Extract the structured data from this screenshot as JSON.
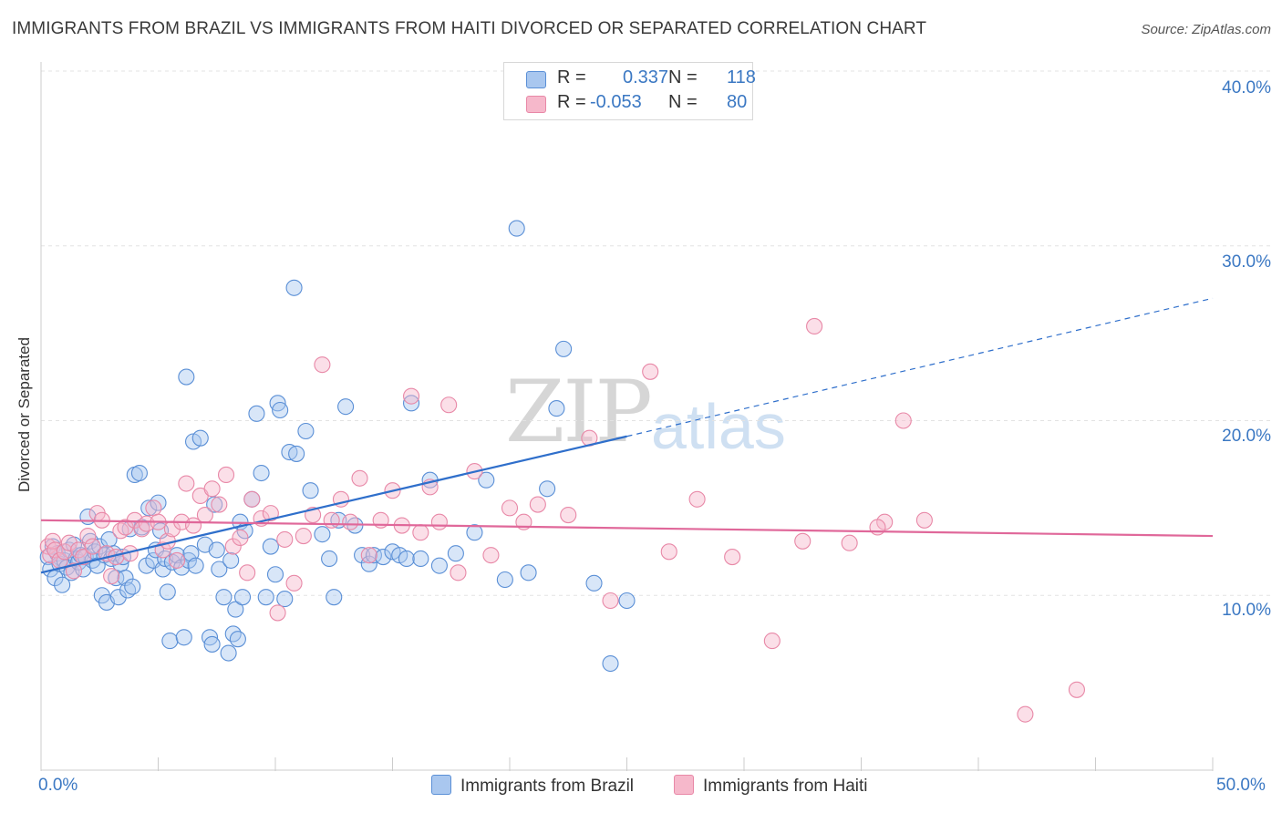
{
  "title": "IMMIGRANTS FROM BRAZIL VS IMMIGRANTS FROM HAITI DIVORCED OR SEPARATED CORRELATION CHART",
  "source": "Source: ZipAtlas.com",
  "watermark": {
    "zip": "ZIP",
    "atlas": "atlas"
  },
  "legend": {
    "rows": [
      {
        "r_label": "R =",
        "r_value": "0.337",
        "n_label": "N =",
        "n_value": "118",
        "color": "#a9c7ef"
      },
      {
        "r_label": "R =",
        "r_value": "-0.053",
        "n_label": "N =",
        "n_value": "80",
        "color": "#f6b8cb"
      }
    ]
  },
  "bottom_legend": [
    {
      "label": "Immigrants from Brazil",
      "color": "#a9c7ef"
    },
    {
      "label": "Immigrants from Haiti",
      "color": "#f6b8cb"
    }
  ],
  "chart_data": {
    "type": "scatter",
    "title": "IMMIGRANTS FROM BRAZIL VS IMMIGRANTS FROM HAITI DIVORCED OR SEPARATED CORRELATION CHART",
    "xlabel": "",
    "ylabel": "Divorced or Separated",
    "xlim": [
      0,
      50
    ],
    "ylim": [
      0,
      40
    ],
    "x_tick_labels": [
      "0.0%",
      "50.0%"
    ],
    "y_ticks": [
      10,
      20,
      30,
      40
    ],
    "y_tick_labels": [
      "10.0%",
      "20.0%",
      "30.0%",
      "40.0%"
    ],
    "grid": true,
    "series": [
      {
        "name": "Immigrants from Brazil",
        "color": "#5a8fd6",
        "fill": "#a9c7ef",
        "trend": {
          "x0": 0,
          "y0": 11.3,
          "x1": 25,
          "y1": 19.1,
          "x_dash_end": 50,
          "y_dash_end": 27.0,
          "color": "#2f6fcb"
        },
        "points": [
          [
            0.3,
            12.2
          ],
          [
            0.4,
            11.5
          ],
          [
            0.5,
            12.8
          ],
          [
            0.6,
            11.0
          ],
          [
            0.7,
            12.4
          ],
          [
            0.8,
            11.8
          ],
          [
            0.9,
            10.6
          ],
          [
            1.0,
            12.0
          ],
          [
            1.1,
            11.6
          ],
          [
            1.2,
            12.6
          ],
          [
            1.3,
            11.3
          ],
          [
            1.4,
            12.9
          ],
          [
            1.5,
            12.1
          ],
          [
            1.6,
            11.9
          ],
          [
            1.7,
            12.3
          ],
          [
            1.8,
            11.5
          ],
          [
            1.9,
            12.2
          ],
          [
            2.0,
            14.5
          ],
          [
            2.1,
            13.1
          ],
          [
            2.2,
            12.0
          ],
          [
            2.3,
            12.5
          ],
          [
            2.4,
            11.7
          ],
          [
            2.5,
            12.8
          ],
          [
            2.6,
            10.0
          ],
          [
            2.7,
            12.3
          ],
          [
            2.8,
            9.6
          ],
          [
            2.9,
            13.2
          ],
          [
            3.0,
            12.1
          ],
          [
            3.1,
            12.4
          ],
          [
            3.2,
            11.0
          ],
          [
            3.3,
            9.9
          ],
          [
            3.4,
            11.8
          ],
          [
            3.5,
            12.2
          ],
          [
            3.6,
            11.0
          ],
          [
            3.7,
            10.3
          ],
          [
            3.8,
            13.8
          ],
          [
            3.9,
            10.5
          ],
          [
            4.0,
            16.9
          ],
          [
            4.2,
            17.0
          ],
          [
            4.3,
            13.9
          ],
          [
            4.5,
            11.7
          ],
          [
            4.6,
            15.0
          ],
          [
            4.8,
            12.0
          ],
          [
            4.9,
            12.6
          ],
          [
            5.0,
            15.3
          ],
          [
            5.1,
            13.7
          ],
          [
            5.2,
            11.5
          ],
          [
            5.3,
            12.1
          ],
          [
            5.4,
            10.2
          ],
          [
            5.5,
            7.4
          ],
          [
            5.6,
            11.9
          ],
          [
            5.8,
            12.3
          ],
          [
            6.0,
            11.6
          ],
          [
            6.1,
            7.6
          ],
          [
            6.2,
            22.5
          ],
          [
            6.3,
            12.0
          ],
          [
            6.4,
            12.4
          ],
          [
            6.5,
            18.8
          ],
          [
            6.6,
            11.7
          ],
          [
            6.8,
            19.0
          ],
          [
            7.0,
            12.9
          ],
          [
            7.2,
            7.6
          ],
          [
            7.3,
            7.2
          ],
          [
            7.4,
            15.2
          ],
          [
            7.5,
            12.6
          ],
          [
            7.6,
            11.5
          ],
          [
            7.8,
            9.9
          ],
          [
            8.0,
            6.7
          ],
          [
            8.1,
            12.0
          ],
          [
            8.2,
            7.8
          ],
          [
            8.3,
            9.2
          ],
          [
            8.4,
            7.5
          ],
          [
            8.5,
            14.2
          ],
          [
            8.6,
            9.9
          ],
          [
            8.7,
            13.7
          ],
          [
            9.0,
            15.5
          ],
          [
            9.2,
            20.4
          ],
          [
            9.4,
            17.0
          ],
          [
            9.6,
            9.9
          ],
          [
            9.8,
            12.8
          ],
          [
            10.0,
            11.2
          ],
          [
            10.1,
            21.0
          ],
          [
            10.2,
            20.6
          ],
          [
            10.4,
            9.8
          ],
          [
            10.6,
            18.2
          ],
          [
            10.8,
            27.6
          ],
          [
            10.9,
            18.1
          ],
          [
            11.3,
            19.4
          ],
          [
            11.5,
            16.0
          ],
          [
            12.0,
            13.5
          ],
          [
            12.3,
            12.1
          ],
          [
            12.5,
            9.9
          ],
          [
            12.7,
            14.3
          ],
          [
            13.0,
            20.8
          ],
          [
            13.4,
            14.0
          ],
          [
            13.7,
            12.3
          ],
          [
            14.0,
            11.8
          ],
          [
            14.2,
            12.3
          ],
          [
            14.6,
            12.2
          ],
          [
            15.0,
            12.5
          ],
          [
            15.3,
            12.3
          ],
          [
            15.6,
            12.1
          ],
          [
            15.8,
            21.0
          ],
          [
            16.2,
            12.1
          ],
          [
            16.6,
            16.6
          ],
          [
            17.0,
            11.7
          ],
          [
            17.7,
            12.4
          ],
          [
            18.5,
            13.6
          ],
          [
            19.0,
            16.6
          ],
          [
            19.8,
            10.9
          ],
          [
            20.3,
            31.0
          ],
          [
            20.8,
            11.3
          ],
          [
            21.6,
            16.1
          ],
          [
            22.0,
            20.7
          ],
          [
            22.3,
            24.1
          ],
          [
            23.6,
            10.7
          ],
          [
            24.3,
            6.1
          ],
          [
            25.0,
            9.7
          ]
        ]
      },
      {
        "name": "Immigrants from Haiti",
        "color": "#e888a7",
        "fill": "#f6b8cb",
        "trend": {
          "x0": 0,
          "y0": 14.3,
          "x1": 50,
          "y1": 13.4,
          "color": "#e0689a"
        },
        "points": [
          [
            0.3,
            12.8
          ],
          [
            0.4,
            12.3
          ],
          [
            0.5,
            13.1
          ],
          [
            0.6,
            12.6
          ],
          [
            0.8,
            12.0
          ],
          [
            1.0,
            12.5
          ],
          [
            1.2,
            13.0
          ],
          [
            1.4,
            11.4
          ],
          [
            1.6,
            12.6
          ],
          [
            1.8,
            12.2
          ],
          [
            2.0,
            13.4
          ],
          [
            2.2,
            12.8
          ],
          [
            2.4,
            14.7
          ],
          [
            2.6,
            14.3
          ],
          [
            2.8,
            12.4
          ],
          [
            3.0,
            11.1
          ],
          [
            3.2,
            12.2
          ],
          [
            3.4,
            13.7
          ],
          [
            3.6,
            13.9
          ],
          [
            3.8,
            12.4
          ],
          [
            4.0,
            14.3
          ],
          [
            4.3,
            13.8
          ],
          [
            4.5,
            14.1
          ],
          [
            4.8,
            15.0
          ],
          [
            5.0,
            14.2
          ],
          [
            5.2,
            12.6
          ],
          [
            5.4,
            13.1
          ],
          [
            5.6,
            13.8
          ],
          [
            5.8,
            12.0
          ],
          [
            6.0,
            14.2
          ],
          [
            6.2,
            16.4
          ],
          [
            6.5,
            14.0
          ],
          [
            6.8,
            15.7
          ],
          [
            7.0,
            14.6
          ],
          [
            7.3,
            16.1
          ],
          [
            7.6,
            15.2
          ],
          [
            7.9,
            16.9
          ],
          [
            8.2,
            12.8
          ],
          [
            8.5,
            13.3
          ],
          [
            8.8,
            11.3
          ],
          [
            9.0,
            15.5
          ],
          [
            9.4,
            14.4
          ],
          [
            9.8,
            14.7
          ],
          [
            10.1,
            9.0
          ],
          [
            10.4,
            13.2
          ],
          [
            10.8,
            10.7
          ],
          [
            11.2,
            13.4
          ],
          [
            11.6,
            14.6
          ],
          [
            12.0,
            23.2
          ],
          [
            12.4,
            14.3
          ],
          [
            12.8,
            15.5
          ],
          [
            13.2,
            14.2
          ],
          [
            13.6,
            16.7
          ],
          [
            14.0,
            12.3
          ],
          [
            14.5,
            14.3
          ],
          [
            15.0,
            16.0
          ],
          [
            15.4,
            14.0
          ],
          [
            15.8,
            21.4
          ],
          [
            16.2,
            13.6
          ],
          [
            16.6,
            16.2
          ],
          [
            17.0,
            14.2
          ],
          [
            17.4,
            20.9
          ],
          [
            17.8,
            11.3
          ],
          [
            18.5,
            17.1
          ],
          [
            19.2,
            12.3
          ],
          [
            20.0,
            15.0
          ],
          [
            20.6,
            14.2
          ],
          [
            21.2,
            15.2
          ],
          [
            22.5,
            14.6
          ],
          [
            23.4,
            19.0
          ],
          [
            24.3,
            9.7
          ],
          [
            26.0,
            22.8
          ],
          [
            26.8,
            12.5
          ],
          [
            28.0,
            15.5
          ],
          [
            29.5,
            12.2
          ],
          [
            31.2,
            7.4
          ],
          [
            32.5,
            13.1
          ],
          [
            33.0,
            25.4
          ],
          [
            34.5,
            13.0
          ],
          [
            36.0,
            14.2
          ]
        ]
      },
      {
        "name": "",
        "color": "#e888a7",
        "fill": "#f6b8cb",
        "points": [
          [
            36.8,
            20.0
          ],
          [
            35.7,
            13.9
          ],
          [
            37.7,
            14.3
          ],
          [
            42.0,
            3.2
          ],
          [
            44.2,
            4.6
          ]
        ]
      }
    ]
  }
}
